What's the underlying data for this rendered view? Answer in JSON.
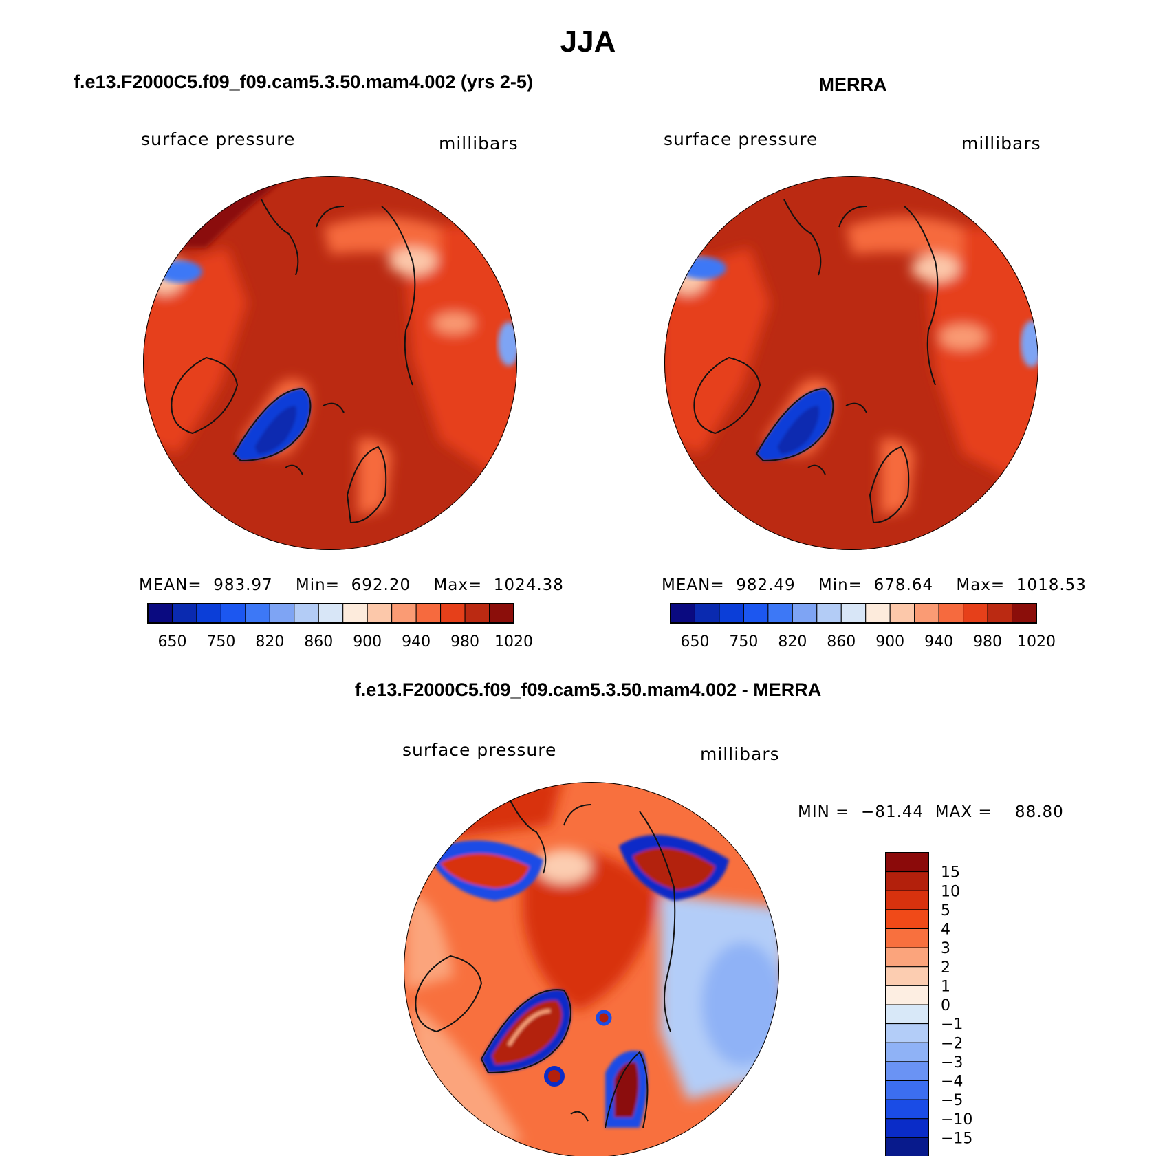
{
  "figure": {
    "title": "JJA",
    "left_panel_title": "f.e13.F2000C5.f09_f09.cam5.3.50.mam4.002 (yrs 2-5)",
    "right_panel_title": "MERRA",
    "diff_panel_title": "f.e13.F2000C5.f09_f09.cam5.3.50.mam4.002 - MERRA"
  },
  "chart_data": [
    {
      "type": "heatmap",
      "name": "model",
      "title": "f.e13.F2000C5.f09_f09.cam5.3.50.mam4.002 (yrs 2-5)",
      "variable_label": "surface pressure",
      "units_label": "millibars",
      "stats_text": "MEAN=  983.97    Min=  692.20    Max=  1024.38",
      "mean": 983.97,
      "min": 692.2,
      "max": 1024.38,
      "colorbar_labels": [
        "650",
        "750",
        "820",
        "860",
        "900",
        "940",
        "980",
        "1020"
      ],
      "colorbar_colors": [
        "#0a0a80",
        "#0a2ab0",
        "#0b3ed8",
        "#1c57f0",
        "#3d78f6",
        "#7ea4f4",
        "#b3ccf6",
        "#d8e6f7",
        "#fdebdc",
        "#fcc8aa",
        "#fa9b74",
        "#f66a3e",
        "#e6401a",
        "#bb2a12",
        "#8b0e0a"
      ]
    },
    {
      "type": "heatmap",
      "name": "merra",
      "title": "MERRA",
      "variable_label": "surface pressure",
      "units_label": "millibars",
      "stats_text": "MEAN=  982.49    Min=  678.64    Max=  1018.53",
      "mean": 982.49,
      "min": 678.64,
      "max": 1018.53,
      "colorbar_labels": [
        "650",
        "750",
        "820",
        "860",
        "900",
        "940",
        "980",
        "1020"
      ],
      "colorbar_colors": [
        "#0a0a80",
        "#0a2ab0",
        "#0b3ed8",
        "#1c57f0",
        "#3d78f6",
        "#7ea4f4",
        "#b3ccf6",
        "#d8e6f7",
        "#fdebdc",
        "#fcc8aa",
        "#fa9b74",
        "#f66a3e",
        "#e6401a",
        "#bb2a12",
        "#8b0e0a"
      ]
    },
    {
      "type": "heatmap",
      "name": "difference",
      "title": "f.e13.F2000C5.f09_f09.cam5.3.50.mam4.002 - MERRA",
      "variable_label": "surface pressure",
      "units_label": "millibars",
      "stats_text": "MIN =  −81.44  MAX =    88.80",
      "min": -81.44,
      "max": 88.8,
      "colorbar_labels": [
        "15",
        "10",
        "5",
        "4",
        "3",
        "2",
        "1",
        "0",
        "−1",
        "−2",
        "−3",
        "−4",
        "−5",
        "−10",
        "−15"
      ],
      "colorbar_colors": [
        "#8b0a0a",
        "#b3200c",
        "#d8320e",
        "#f04a18",
        "#f8703e",
        "#fba47c",
        "#fccdb1",
        "#fdeee2",
        "#d8e8f8",
        "#b3cdf8",
        "#8fb2f6",
        "#6a93f4",
        "#3c6ef0",
        "#1a4ce6",
        "#0a2cc8",
        "#081a8c"
      ]
    }
  ]
}
